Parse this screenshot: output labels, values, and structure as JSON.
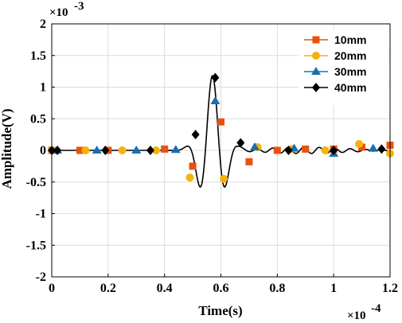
{
  "chart_data": {
    "type": "line",
    "xlabel": "Time(s)",
    "ylabel": "Amplitude(V)",
    "x_exponent_label": "×10",
    "x_exponent": "-4",
    "y_exponent_label": "×10",
    "y_exponent": "-3",
    "xlim": [
      0,
      1.2
    ],
    "ylim": [
      -2,
      2
    ],
    "x_ticks": [
      "0",
      "0.2",
      "0.4",
      "0.6",
      "0.8",
      "1",
      "1.2"
    ],
    "y_ticks": [
      "2",
      "1.5",
      "1",
      "0.5",
      "0",
      "-0.5",
      "-1",
      "-1.5",
      "-2"
    ],
    "grid": true,
    "legend_position": "top-right",
    "series": [
      {
        "name": "10mm",
        "color": "#e8520e",
        "marker": "square",
        "points": [
          [
            0.0,
            0.0
          ],
          [
            0.1,
            0.0
          ],
          [
            0.2,
            0.0
          ],
          [
            0.4,
            0.02
          ],
          [
            0.5,
            -0.25
          ],
          [
            0.6,
            0.45
          ],
          [
            0.7,
            -0.18
          ],
          [
            0.8,
            0.0
          ],
          [
            0.9,
            0.02
          ],
          [
            1.0,
            0.02
          ],
          [
            1.1,
            0.05
          ],
          [
            1.2,
            0.08
          ]
        ]
      },
      {
        "name": "20mm",
        "color": "#f5b20a",
        "marker": "circle",
        "points": [
          [
            0.0,
            0.0
          ],
          [
            0.12,
            0.0
          ],
          [
            0.25,
            0.0
          ],
          [
            0.37,
            0.0
          ],
          [
            0.49,
            -0.43
          ],
          [
            0.61,
            -0.45
          ],
          [
            0.73,
            0.05
          ],
          [
            0.85,
            0.02
          ],
          [
            0.97,
            0.0
          ],
          [
            1.09,
            0.1
          ],
          [
            1.2,
            -0.05
          ]
        ]
      },
      {
        "name": "30mm",
        "color": "#1a6fae",
        "marker": "triangle",
        "points": [
          [
            0.02,
            0.0
          ],
          [
            0.16,
            0.0
          ],
          [
            0.3,
            0.0
          ],
          [
            0.44,
            0.01
          ],
          [
            0.58,
            0.78
          ],
          [
            0.72,
            0.05
          ],
          [
            0.86,
            0.03
          ],
          [
            1.0,
            -0.05
          ],
          [
            1.14,
            0.03
          ]
        ]
      },
      {
        "name": "40mm",
        "color": "#000000",
        "marker": "diamond",
        "points": [
          [
            0.0,
            0.0
          ],
          [
            0.02,
            0.0
          ],
          [
            0.19,
            0.0
          ],
          [
            0.35,
            0.0
          ],
          [
            0.51,
            0.25
          ],
          [
            0.58,
            1.15
          ],
          [
            0.67,
            0.12
          ],
          [
            0.84,
            0.0
          ],
          [
            1.0,
            0.0
          ],
          [
            1.17,
            0.02
          ]
        ]
      }
    ]
  }
}
